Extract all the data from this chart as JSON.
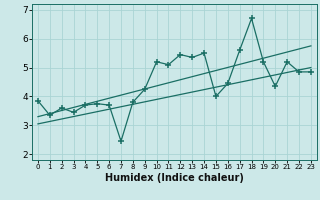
{
  "xlabel": "Humidex (Indice chaleur)",
  "bg_color": "#cce8e8",
  "line_color": "#1a6e64",
  "grid_color": "#aad4d4",
  "xlim": [
    -0.5,
    23.5
  ],
  "ylim": [
    1.8,
    7.2
  ],
  "yticks": [
    2,
    3,
    4,
    5,
    6,
    7
  ],
  "xticks": [
    0,
    1,
    2,
    3,
    4,
    5,
    6,
    7,
    8,
    9,
    10,
    11,
    12,
    13,
    14,
    15,
    16,
    17,
    18,
    19,
    20,
    21,
    22,
    23
  ],
  "data_x": [
    0,
    1,
    2,
    3,
    4,
    5,
    6,
    7,
    8,
    9,
    10,
    11,
    12,
    13,
    14,
    15,
    16,
    17,
    18,
    19,
    20,
    21,
    22,
    23
  ],
  "data_y": [
    3.85,
    3.35,
    3.6,
    3.45,
    3.7,
    3.75,
    3.7,
    2.45,
    3.8,
    4.25,
    5.2,
    5.1,
    5.45,
    5.35,
    5.5,
    4.0,
    4.45,
    5.6,
    6.7,
    5.2,
    4.35,
    5.2,
    4.85,
    4.85
  ],
  "trend1_x": [
    0,
    23
  ],
  "trend1_y": [
    3.3,
    5.75
  ],
  "trend2_x": [
    0,
    23
  ],
  "trend2_y": [
    3.05,
    5.0
  ]
}
